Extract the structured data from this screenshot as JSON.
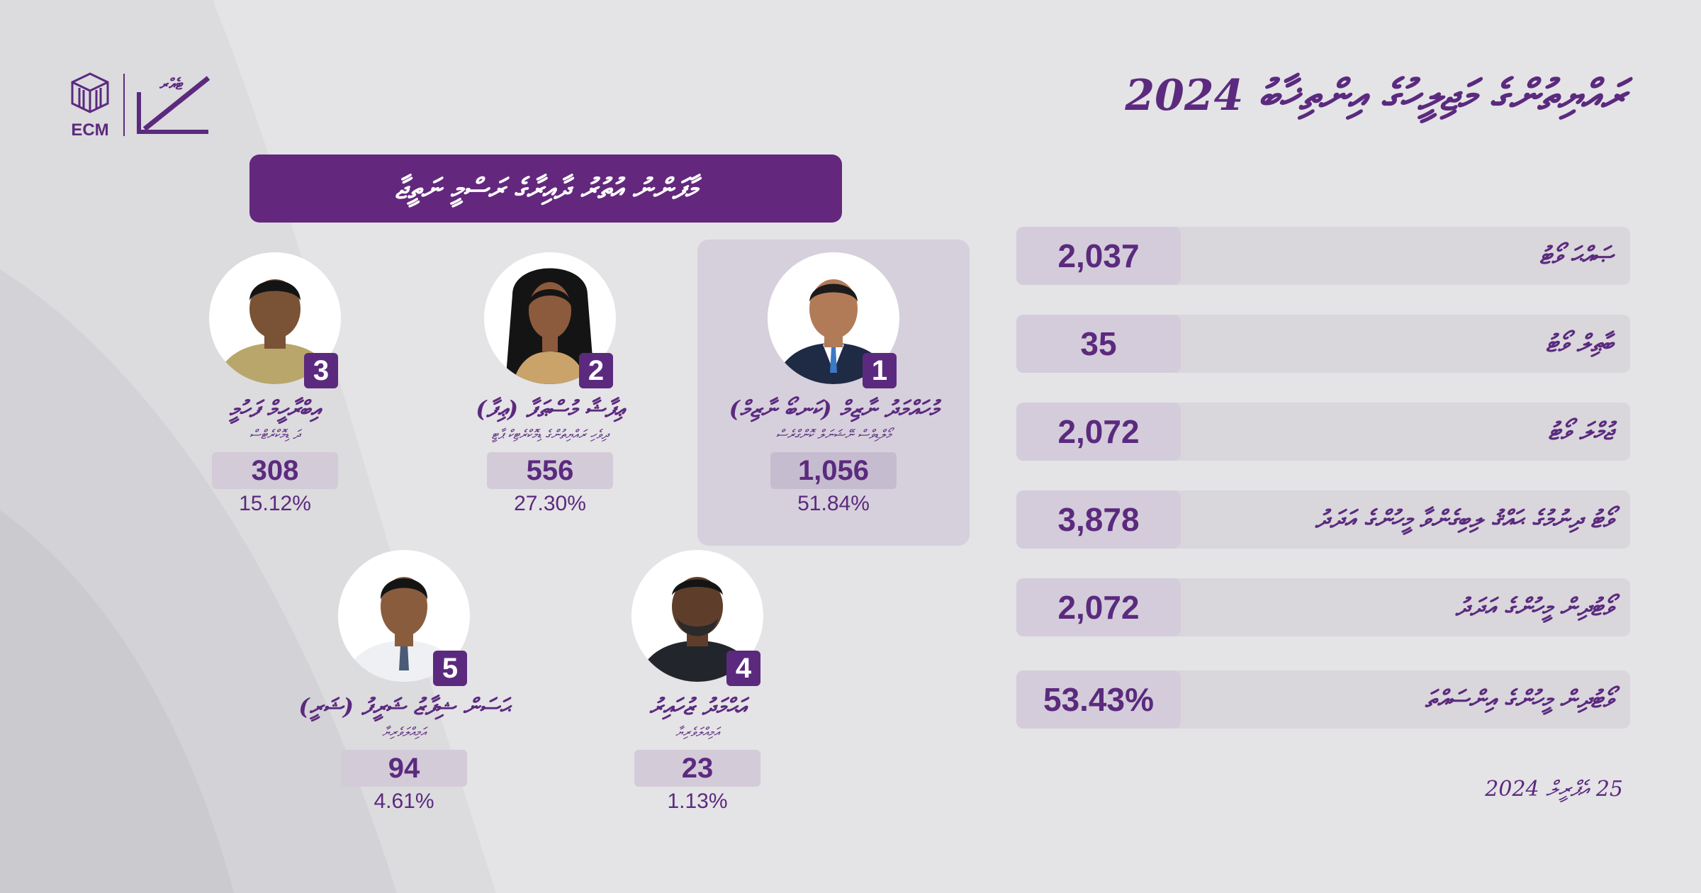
{
  "colors": {
    "accent": "#5b2a7e",
    "banner": "#63287d",
    "background": "#e4e3e6",
    "panel": "#d6d0dc"
  },
  "logo": {
    "org_text": "ECM",
    "vote_text": "ޓެއްރ"
  },
  "title": "ރައްޔިތުންގެ މަޖިލީހުގެ އިންތިޚާބު 2024",
  "banner": "މާފަންނު އުތުރު ދާއިރާގެ ރަސްމީ ނަތީޖާ",
  "candidates": [
    {
      "number": "1",
      "name": "މުހައްމަދު ނާޒިމް (ކަނބޯ ނާޒިމް)",
      "party": "މޯލްޑިވްސް ނޭޝަނަލް ކޮންގްރެސް",
      "votes": "1,056",
      "percent": "51.84%",
      "icon": "person-photo"
    },
    {
      "number": "2",
      "name": "ޢިފާޝާ މުސްޠަފާ (ޢިފާ)",
      "party": "ދިވެހި ރައްޔިތުންގެ ޑިމޮކްރެޓިކް ޕާޓީ",
      "votes": "556",
      "percent": "27.30%",
      "icon": "person-photo"
    },
    {
      "number": "3",
      "name": "އިބްރާހީމް ފަހުމީ",
      "party": "ދަ ޑިމޮކްރެޓްސް",
      "votes": "308",
      "percent": "15.12%",
      "icon": "person-photo"
    },
    {
      "number": "4",
      "name": "އަޙްމަދު ޒުހައިރު",
      "party": "އަމިއްލަވެރިޔާ",
      "votes": "23",
      "percent": "1.13%",
      "icon": "person-photo"
    },
    {
      "number": "5",
      "name": "ޙަސަން ޝިފާޒު ޝަރީފު (ޝަރީ)",
      "party": "އަމިއްލަވެރިޔާ",
      "votes": "94",
      "percent": "4.61%",
      "icon": "person-photo"
    }
  ],
  "stats": [
    {
      "label": "ޞައްޙަ ވޯޓު",
      "value": "2,037"
    },
    {
      "label": "ބާޠިލް ވޯޓު",
      "value": "35"
    },
    {
      "label": "ޖުމްލަ ވޯޓު",
      "value": "2,072"
    },
    {
      "label": "ވޯޓު ދިނުމުގެ ޙައްޤު ލިބިގެންވާ މީހުންގެ އަދަދު",
      "value": "3,878"
    },
    {
      "label": "ވޯޓުދިން މީހުންގެ އަދަދު",
      "value": "2,072"
    },
    {
      "label": "ވޯޓުދިން މީހުންގެ އިންސައްތަ",
      "value": "53.43%"
    }
  ],
  "date": "25 އެޕްރީލް 2024"
}
